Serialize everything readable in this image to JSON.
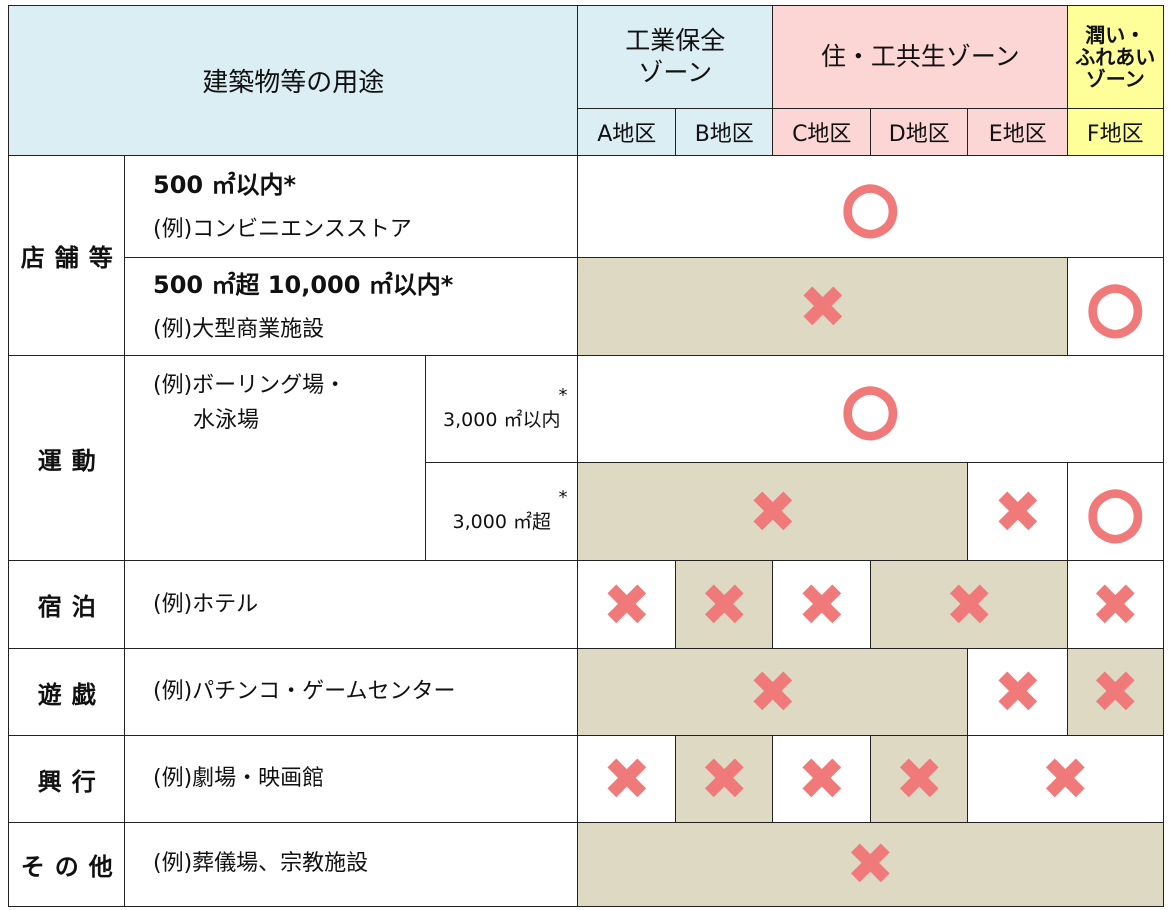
{
  "header": {
    "title": "建築物等の用途",
    "zones": [
      {
        "lines": [
          "工業保全",
          "ゾーン"
        ],
        "color": "#dbeef4"
      },
      {
        "lines": [
          "住・工共生ゾーン"
        ],
        "color": "#fcd5d5"
      },
      {
        "lines": [
          "潤い・",
          "ふれあい",
          "ゾーン"
        ],
        "color": "#ffff99"
      }
    ],
    "districts": [
      "A地区",
      "B地区",
      "C地区",
      "D地区",
      "E地区",
      "F地区"
    ]
  },
  "groups": [
    {
      "category": "店舗等",
      "items": [
        {
          "lines": [
            "500 ㎡以内*",
            "(例)コンビニエンスストア"
          ],
          "cells": [
            {
              "span": 6,
              "shaded": false,
              "mark": "○"
            }
          ]
        },
        {
          "lines": [
            "500 ㎡超 10,000 ㎡以内*",
            "(例)大型商業施設"
          ],
          "cells": [
            {
              "span": 5,
              "shaded": true,
              "mark": "✖"
            },
            {
              "span": 1,
              "shaded": false,
              "mark": "○"
            }
          ]
        }
      ]
    },
    {
      "category": "運動",
      "lines": [
        "(例)ボーリング場・",
        "水泳場"
      ],
      "items": [
        {
          "size": {
            "note": "*",
            "label": "3,000 ㎡以内"
          },
          "cells": [
            {
              "span": 6,
              "shaded": false,
              "mark": "○"
            }
          ]
        },
        {
          "size": {
            "note": "*",
            "label": "3,000 ㎡超"
          },
          "cells": [
            {
              "span": 4,
              "shaded": true,
              "mark": "✖"
            },
            {
              "span": 1,
              "shaded": false,
              "mark": "✖"
            },
            {
              "span": 1,
              "shaded": false,
              "mark": "○"
            }
          ]
        }
      ]
    },
    {
      "category": "宿泊",
      "items": [
        {
          "lines": [
            "(例)ホテル"
          ],
          "cells": [
            {
              "span": 1,
              "shaded": false,
              "mark": "✖"
            },
            {
              "span": 1,
              "shaded": true,
              "mark": "✖"
            },
            {
              "span": 1,
              "shaded": false,
              "mark": "✖"
            },
            {
              "span": 2,
              "shaded": true,
              "mark": "✖"
            },
            {
              "span": 1,
              "shaded": false,
              "mark": "✖"
            }
          ]
        }
      ]
    },
    {
      "category": "遊戯",
      "items": [
        {
          "lines": [
            "(例)パチンコ・ゲームセンター"
          ],
          "cells": [
            {
              "span": 4,
              "shaded": true,
              "mark": "✖"
            },
            {
              "span": 1,
              "shaded": false,
              "mark": "✖"
            },
            {
              "span": 1,
              "shaded": true,
              "mark": "✖"
            }
          ]
        }
      ]
    },
    {
      "category": "興行",
      "items": [
        {
          "lines": [
            "(例)劇場・映画館"
          ],
          "cells": [
            {
              "span": 1,
              "shaded": false,
              "mark": "✖"
            },
            {
              "span": 1,
              "shaded": true,
              "mark": "✖"
            },
            {
              "span": 1,
              "shaded": false,
              "mark": "✖"
            },
            {
              "span": 1,
              "shaded": true,
              "mark": "✖"
            },
            {
              "span": 2,
              "shaded": false,
              "mark": "✖"
            }
          ]
        }
      ]
    },
    {
      "category": "その他",
      "items": [
        {
          "lines": [
            "(例)葬儀場、宗教施設"
          ],
          "cells": [
            {
              "span": 6,
              "shaded": true,
              "mark": "✖"
            }
          ]
        }
      ]
    }
  ]
}
